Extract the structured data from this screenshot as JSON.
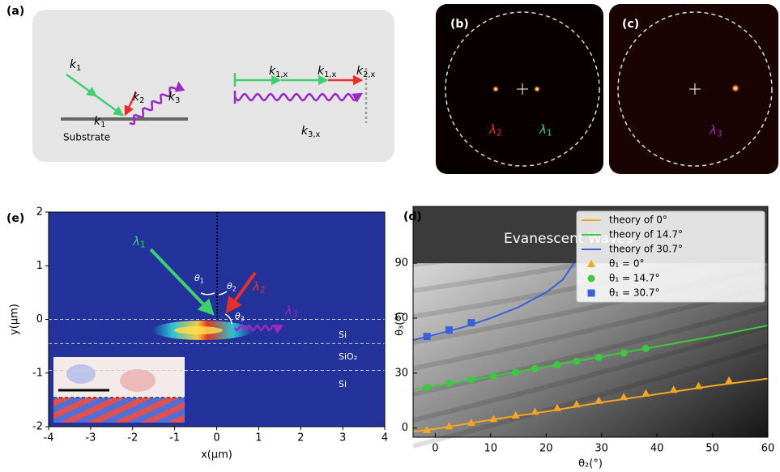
{
  "panel_labels": [
    "(a)",
    "(b)",
    "(c)",
    "(e)",
    "(d)"
  ],
  "panel_a": {
    "vectors": [
      {
        "base": "k",
        "sub": "1"
      },
      {
        "base": "k",
        "sub": "1"
      },
      {
        "base": "k",
        "sub": "2"
      },
      {
        "base": "k",
        "sub": "3"
      },
      {
        "base": "k",
        "sub": "1,x"
      },
      {
        "base": "k",
        "sub": "1,x"
      },
      {
        "base": "k",
        "sub": "2,x"
      },
      {
        "base": "k",
        "sub": "3,x"
      }
    ],
    "substrate": "Substrate"
  },
  "panel_b": {
    "labels": [
      {
        "base": "λ",
        "sub": "2"
      },
      {
        "base": "λ",
        "sub": "1"
      }
    ]
  },
  "panel_c": {
    "labels": [
      {
        "base": "λ",
        "sub": "3"
      }
    ]
  },
  "chart_data": [
    {
      "type": "field",
      "xlabel": "x(μm)",
      "ylabel": "y(μm)",
      "xlim": [
        -4,
        4
      ],
      "ylim": [
        -2,
        2
      ],
      "xticks": [
        -4,
        -3,
        -2,
        -1,
        0,
        1,
        2,
        3,
        4
      ],
      "yticks": [
        -2,
        -1,
        0,
        1,
        2
      ],
      "interfaces": [
        0,
        -0.45,
        -0.95
      ],
      "layers": [
        "Si",
        "SiO₂",
        "Si"
      ],
      "annotations": [
        {
          "base": "λ",
          "sub": "1"
        },
        {
          "base": "θ",
          "sub": "1"
        },
        {
          "base": "θ",
          "sub": "2"
        },
        {
          "base": "θ",
          "sub": "3"
        },
        {
          "base": "λ",
          "sub": "2"
        },
        {
          "base": "λ",
          "sub": "3"
        }
      ]
    },
    {
      "type": "line",
      "xlabel": "θ₂(°)",
      "ylabel": "θ₃(°)",
      "annotation": "Evanescent Waves",
      "evanescent_limit": 90,
      "xlim": [
        -4,
        60
      ],
      "ylim": [
        -5,
        121
      ],
      "xticks": [
        0,
        10,
        20,
        30,
        40,
        50,
        60
      ],
      "yticks": [
        0,
        30,
        60,
        90
      ],
      "legend": "upper right",
      "series": [
        {
          "name": "theory of 0°",
          "color": "#f5a623",
          "x": [
            -4,
            0,
            10,
            20,
            30,
            40,
            50,
            60
          ],
          "values": [
            -2,
            -0.5,
            4.5,
            9,
            14,
            18.5,
            23,
            27
          ]
        },
        {
          "name": "theory of 14.7°",
          "color": "#3ec83e",
          "x": [
            -4,
            0,
            10,
            20,
            30,
            40,
            50,
            60
          ],
          "values": [
            21,
            23,
            28,
            33.5,
            39,
            44.5,
            50,
            56
          ]
        },
        {
          "name": "theory of 30.7°",
          "color": "#3a5fd9",
          "x": [
            -4,
            0,
            5,
            10,
            15,
            20,
            23,
            25
          ],
          "values": [
            48,
            51,
            55,
            60,
            66,
            74,
            81,
            90
          ]
        },
        {
          "name": "θ₁ = 0°",
          "color": "#f5a623",
          "marker": "triangle",
          "x": [
            -1.5,
            2.5,
            6.5,
            10.5,
            14.5,
            18,
            22,
            25.5,
            29.5,
            34,
            38,
            43,
            47.5,
            53
          ],
          "values": [
            -1,
            1,
            3,
            5,
            7,
            9,
            11,
            13,
            15,
            17,
            19,
            21,
            23,
            26
          ]
        },
        {
          "name": "θ₁ = 14.7°",
          "color": "#3ec83e",
          "marker": "circle",
          "x": [
            -1.5,
            2.5,
            6.5,
            10.5,
            14.5,
            18,
            22,
            25.5,
            29.5,
            34,
            38
          ],
          "values": [
            22,
            24.5,
            26.5,
            28.5,
            30.5,
            32.5,
            34.5,
            36.5,
            38.5,
            41,
            43.5
          ]
        },
        {
          "name": "θ₁ = 30.7°",
          "color": "#3a5fd9",
          "marker": "square",
          "x": [
            -1.5,
            2.5,
            6.5
          ],
          "values": [
            50,
            53.5,
            57.5
          ]
        }
      ]
    }
  ]
}
